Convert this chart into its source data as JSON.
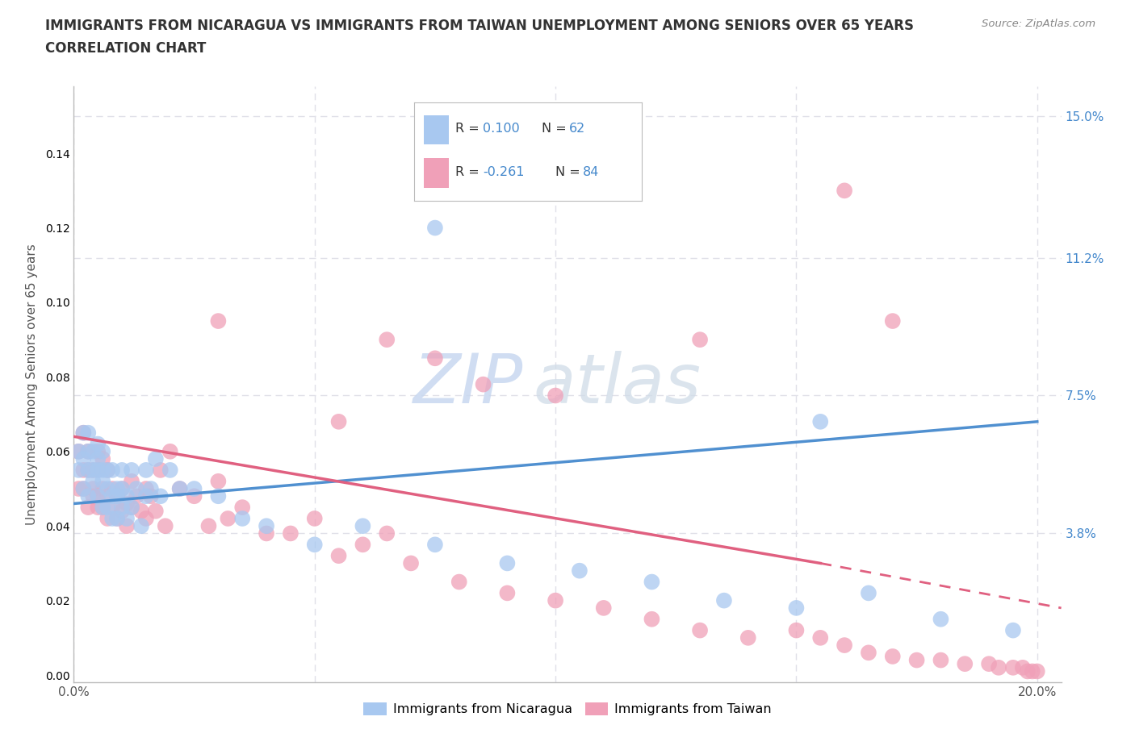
{
  "title_line1": "IMMIGRANTS FROM NICARAGUA VS IMMIGRANTS FROM TAIWAN UNEMPLOYMENT AMONG SENIORS OVER 65 YEARS",
  "title_line2": "CORRELATION CHART",
  "source": "Source: ZipAtlas.com",
  "ylabel": "Unemployment Among Seniors over 65 years",
  "xlim": [
    0.0,
    0.205
  ],
  "ylim": [
    -0.002,
    0.158
  ],
  "ytick_positions": [
    0.038,
    0.075,
    0.112,
    0.15
  ],
  "ytick_labels": [
    "3.8%",
    "7.5%",
    "11.2%",
    "15.0%"
  ],
  "color_nicaragua": "#a8c8f0",
  "color_taiwan": "#f0a0b8",
  "color_trendline_nicaragua": "#5090d0",
  "color_trendline_taiwan": "#e06080",
  "color_blue_text": "#4488cc",
  "background_color": "#ffffff",
  "grid_color": "#e0e0e8",
  "watermark_color": "#c8d8f0",
  "nicaragua_x": [
    0.001,
    0.001,
    0.002,
    0.002,
    0.002,
    0.003,
    0.003,
    0.003,
    0.003,
    0.004,
    0.004,
    0.004,
    0.005,
    0.005,
    0.005,
    0.005,
    0.006,
    0.006,
    0.006,
    0.006,
    0.007,
    0.007,
    0.007,
    0.008,
    0.008,
    0.008,
    0.009,
    0.009,
    0.009,
    0.01,
    0.01,
    0.01,
    0.011,
    0.011,
    0.012,
    0.012,
    0.013,
    0.014,
    0.015,
    0.015,
    0.016,
    0.017,
    0.018,
    0.02,
    0.022,
    0.025,
    0.03,
    0.035,
    0.04,
    0.05,
    0.06,
    0.075,
    0.09,
    0.105,
    0.12,
    0.135,
    0.15,
    0.165,
    0.18,
    0.195,
    0.155,
    0.075
  ],
  "nicaragua_y": [
    0.06,
    0.055,
    0.065,
    0.05,
    0.058,
    0.055,
    0.06,
    0.048,
    0.065,
    0.055,
    0.06,
    0.052,
    0.058,
    0.062,
    0.048,
    0.055,
    0.055,
    0.06,
    0.045,
    0.052,
    0.05,
    0.055,
    0.045,
    0.048,
    0.055,
    0.042,
    0.05,
    0.048,
    0.042,
    0.055,
    0.045,
    0.05,
    0.048,
    0.042,
    0.045,
    0.055,
    0.05,
    0.04,
    0.048,
    0.055,
    0.05,
    0.058,
    0.048,
    0.055,
    0.05,
    0.05,
    0.048,
    0.042,
    0.04,
    0.035,
    0.04,
    0.035,
    0.03,
    0.028,
    0.025,
    0.02,
    0.018,
    0.022,
    0.015,
    0.012,
    0.068,
    0.12
  ],
  "taiwan_x": [
    0.001,
    0.001,
    0.002,
    0.002,
    0.002,
    0.003,
    0.003,
    0.003,
    0.004,
    0.004,
    0.004,
    0.005,
    0.005,
    0.005,
    0.005,
    0.006,
    0.006,
    0.006,
    0.007,
    0.007,
    0.007,
    0.008,
    0.008,
    0.009,
    0.009,
    0.01,
    0.01,
    0.011,
    0.011,
    0.012,
    0.012,
    0.013,
    0.014,
    0.015,
    0.015,
    0.016,
    0.017,
    0.018,
    0.019,
    0.02,
    0.022,
    0.025,
    0.028,
    0.03,
    0.032,
    0.035,
    0.04,
    0.045,
    0.05,
    0.055,
    0.06,
    0.065,
    0.07,
    0.08,
    0.09,
    0.1,
    0.11,
    0.12,
    0.13,
    0.14,
    0.15,
    0.155,
    0.16,
    0.165,
    0.17,
    0.175,
    0.18,
    0.185,
    0.19,
    0.192,
    0.195,
    0.197,
    0.198,
    0.199,
    0.2,
    0.03,
    0.065,
    0.075,
    0.13,
    0.055,
    0.085,
    0.1,
    0.16,
    0.17
  ],
  "taiwan_y": [
    0.06,
    0.05,
    0.065,
    0.055,
    0.05,
    0.06,
    0.055,
    0.045,
    0.055,
    0.05,
    0.048,
    0.055,
    0.048,
    0.06,
    0.045,
    0.058,
    0.05,
    0.045,
    0.055,
    0.048,
    0.042,
    0.05,
    0.045,
    0.048,
    0.042,
    0.05,
    0.044,
    0.046,
    0.04,
    0.052,
    0.045,
    0.048,
    0.044,
    0.042,
    0.05,
    0.048,
    0.044,
    0.055,
    0.04,
    0.06,
    0.05,
    0.048,
    0.04,
    0.052,
    0.042,
    0.045,
    0.038,
    0.038,
    0.042,
    0.032,
    0.035,
    0.038,
    0.03,
    0.025,
    0.022,
    0.02,
    0.018,
    0.015,
    0.012,
    0.01,
    0.012,
    0.01,
    0.008,
    0.006,
    0.005,
    0.004,
    0.004,
    0.003,
    0.003,
    0.002,
    0.002,
    0.002,
    0.001,
    0.001,
    0.001,
    0.095,
    0.09,
    0.085,
    0.09,
    0.068,
    0.078,
    0.075,
    0.13,
    0.095
  ],
  "trend_nic_x0": 0.0,
  "trend_nic_y0": 0.046,
  "trend_nic_x1": 0.2,
  "trend_nic_y1": 0.068,
  "trend_tai_solid_x0": 0.0,
  "trend_tai_solid_y0": 0.064,
  "trend_tai_solid_x1": 0.155,
  "trend_tai_solid_y1": 0.03,
  "trend_tai_dash_x0": 0.155,
  "trend_tai_dash_y0": 0.03,
  "trend_tai_dash_x1": 0.205,
  "trend_tai_dash_y1": 0.018
}
